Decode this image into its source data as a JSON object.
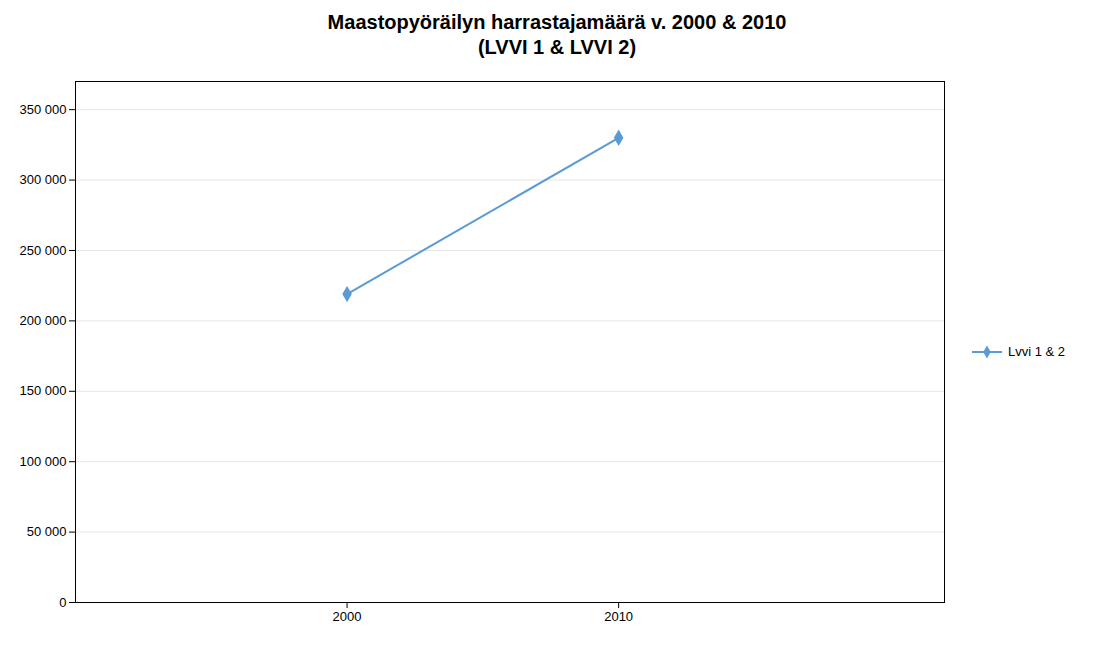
{
  "chart_data": {
    "type": "line",
    "title": "Maastopyöräilyn harrastajamäärä v. 2000 & 2010\n(LVVI 1 & LVVI 2)",
    "x": [
      2000,
      2010
    ],
    "series": [
      {
        "name": "Lvvi 1 & 2",
        "color": "#5b9bd5",
        "marker": "diamond",
        "values": [
          219000,
          330000
        ]
      }
    ],
    "xlim": [
      1990,
      2022
    ],
    "xticks": [
      2000,
      2010
    ],
    "ylim": [
      0,
      370000
    ],
    "yticks": [
      0,
      {
        "value": 50000,
        "label": "50 000"
      },
      {
        "value": 100000,
        "label": "100 000"
      },
      {
        "value": 150000,
        "label": "150 000"
      },
      {
        "value": 200000,
        "label": "200 000"
      },
      {
        "value": 250000,
        "label": "250 000"
      },
      {
        "value": 300000,
        "label": "300 000"
      },
      {
        "value": 350000,
        "label": "350 000"
      }
    ],
    "grid": true,
    "legend": "right"
  }
}
